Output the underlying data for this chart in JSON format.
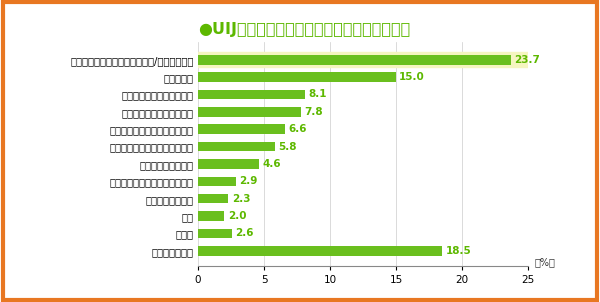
{
  "title": "●UIJターンを伴う転職先を見つける際の課題",
  "title_color": "#5db800",
  "categories": [
    "候補となる転職先の情報がない/集められない",
    "年齢の制約",
    "転職先の労働条件が不明確",
    "希望する給与の仕事がない",
    "希望する勤務場所の仕事がない",
    "希望する勤務時間の仕事がない",
    "就業能力面での制約",
    "希望する就業形態の仕事がない",
    "体力・健康の問題",
    "学歴",
    "その他",
    "特に課題はない"
  ],
  "values": [
    23.7,
    15.0,
    8.1,
    7.8,
    6.6,
    5.8,
    4.6,
    2.9,
    2.3,
    2.0,
    2.6,
    18.5
  ],
  "bar_color": "#6abf1e",
  "highlight_bg": "#f5f5c0",
  "highlight_index": 0,
  "xlim": [
    0,
    25
  ],
  "xticks": [
    0,
    5,
    10,
    15,
    20,
    25
  ],
  "pct_label": "（%）",
  "border_color": "#e87722",
  "background_color": "#ffffff",
  "value_color": "#5db800",
  "label_fontsize": 7.2,
  "value_fontsize": 7.5,
  "title_fontsize": 11.5
}
